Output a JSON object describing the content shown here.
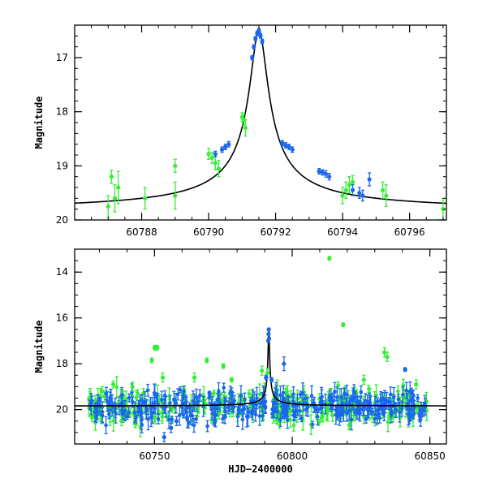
{
  "colors": {
    "green": "#33ee33",
    "blue": "#1a66ee",
    "model": "#000000"
  },
  "chart_data": [
    {
      "type": "scatter",
      "panel": "top",
      "ylabel": "Magnitude",
      "xlabel": "",
      "xlim": [
        60786.0,
        60797.1
      ],
      "ylim": [
        20.0,
        16.4
      ],
      "y_inverted": true,
      "xticks": [
        60788,
        60790,
        60792,
        60794,
        60796
      ],
      "yticks": [
        17,
        18,
        19,
        20
      ],
      "model": {
        "peak_x": 60791.5,
        "peak_y": 16.5,
        "base_y": 19.85,
        "tau": 0.95
      },
      "series": [
        {
          "color": "green",
          "points": [
            [
              60787.0,
              19.75,
              0.2
            ],
            [
              60787.1,
              19.2,
              0.12
            ],
            [
              60787.2,
              19.6,
              0.25
            ],
            [
              60787.3,
              19.4,
              0.3
            ],
            [
              60788.1,
              19.6,
              0.2
            ],
            [
              60789.0,
              19.0,
              0.12
            ],
            [
              60789.0,
              19.55,
              0.25
            ],
            [
              60790.0,
              18.78,
              0.1
            ],
            [
              60790.1,
              18.85,
              0.1
            ],
            [
              60790.2,
              18.95,
              0.12
            ],
            [
              60790.3,
              19.05,
              0.15
            ],
            [
              60791.0,
              18.1,
              0.08
            ],
            [
              60791.05,
              18.15,
              0.1
            ],
            [
              60791.1,
              18.3,
              0.15
            ],
            [
              60794.0,
              19.55,
              0.15
            ],
            [
              60794.1,
              19.45,
              0.15
            ],
            [
              60794.2,
              19.35,
              0.15
            ],
            [
              60794.3,
              19.3,
              0.12
            ],
            [
              60795.2,
              19.45,
              0.15
            ],
            [
              60795.3,
              19.55,
              0.2
            ],
            [
              60797.0,
              19.8,
              0.2
            ]
          ]
        },
        {
          "color": "blue",
          "points": [
            [
              60790.2,
              18.78,
              0.05
            ],
            [
              60790.4,
              18.7,
              0.05
            ],
            [
              60790.5,
              18.65,
              0.05
            ],
            [
              60790.6,
              18.6,
              0.05
            ],
            [
              60791.3,
              17.0,
              0.04
            ],
            [
              60791.35,
              16.8,
              0.04
            ],
            [
              60791.4,
              16.65,
              0.04
            ],
            [
              60791.45,
              16.55,
              0.04
            ],
            [
              60791.5,
              16.5,
              0.04
            ],
            [
              60791.55,
              16.6,
              0.04
            ],
            [
              60791.6,
              16.7,
              0.04
            ],
            [
              60792.2,
              18.58,
              0.05
            ],
            [
              60792.3,
              18.62,
              0.05
            ],
            [
              60792.4,
              18.65,
              0.05
            ],
            [
              60792.5,
              18.7,
              0.05
            ],
            [
              60793.3,
              19.1,
              0.05
            ],
            [
              60793.4,
              19.12,
              0.05
            ],
            [
              60793.5,
              19.15,
              0.06
            ],
            [
              60793.6,
              19.2,
              0.06
            ],
            [
              60794.3,
              19.45,
              0.1
            ],
            [
              60794.5,
              19.5,
              0.1
            ],
            [
              60794.6,
              19.55,
              0.1
            ],
            [
              60794.8,
              19.25,
              0.12
            ]
          ]
        }
      ]
    },
    {
      "type": "scatter",
      "panel": "bottom",
      "ylabel": "Magnitude",
      "xlabel": "HJD−2400000",
      "xlim": [
        60721.0,
        60856.0
      ],
      "ylim": [
        21.5,
        13.0
      ],
      "y_inverted": true,
      "xticks": [
        60750,
        60800,
        60850
      ],
      "yticks": [
        14,
        16,
        18,
        20
      ],
      "baseline_mag": 19.85,
      "noise": {
        "x_range": [
          60726,
          60849
        ],
        "green_count": 300,
        "blue_count": 340,
        "spread": 0.35,
        "seed": 12345
      },
      "series": [
        {
          "color": "green",
          "points": [
            [
              60750.0,
              17.3,
              0.1
            ],
            [
              60751.0,
              17.3,
              0.1
            ],
            [
              60749.0,
              17.85,
              0.1
            ],
            [
              60753.0,
              18.6,
              0.2
            ],
            [
              60764.5,
              18.6,
              0.2
            ],
            [
              60769.0,
              17.85,
              0.1
            ],
            [
              60775.0,
              18.1,
              0.1
            ],
            [
              60778.0,
              18.7,
              0.1
            ],
            [
              60789.0,
              18.3,
              0.2
            ],
            [
              60791.0,
              18.4,
              0.2
            ],
            [
              60813.5,
              13.4,
              0.08
            ],
            [
              60818.5,
              16.3,
              0.08
            ],
            [
              60833.5,
              17.5,
              0.2
            ],
            [
              60834.5,
              17.7,
              0.2
            ],
            [
              60731.0,
              19.2,
              0.2
            ],
            [
              60735.0,
              18.9,
              0.15
            ],
            [
              60742.0,
              19.0,
              0.2
            ],
            [
              60738.0,
              20.5,
              0.2
            ],
            [
              60826.0,
              18.7,
              0.2
            ],
            [
              60845.0,
              18.9,
              0.2
            ]
          ]
        },
        {
          "color": "blue",
          "points": [
            [
              60791.3,
              17.0,
              0.05
            ],
            [
              60791.4,
              16.7,
              0.05
            ],
            [
              60791.5,
              16.5,
              0.05
            ],
            [
              60791.6,
              16.9,
              0.05
            ],
            [
              60790.5,
              18.6,
              0.1
            ],
            [
              60792.5,
              18.7,
              0.1
            ],
            [
              60797.0,
              18.0,
              0.3
            ],
            [
              60841.0,
              18.25,
              0.08
            ],
            [
              60770.0,
              19.3,
              0.1
            ],
            [
              60753.5,
              21.2,
              0.2
            ],
            [
              60756.0,
              20.8,
              0.2
            ],
            [
              60758.0,
              20.5,
              0.2
            ]
          ]
        }
      ]
    }
  ]
}
